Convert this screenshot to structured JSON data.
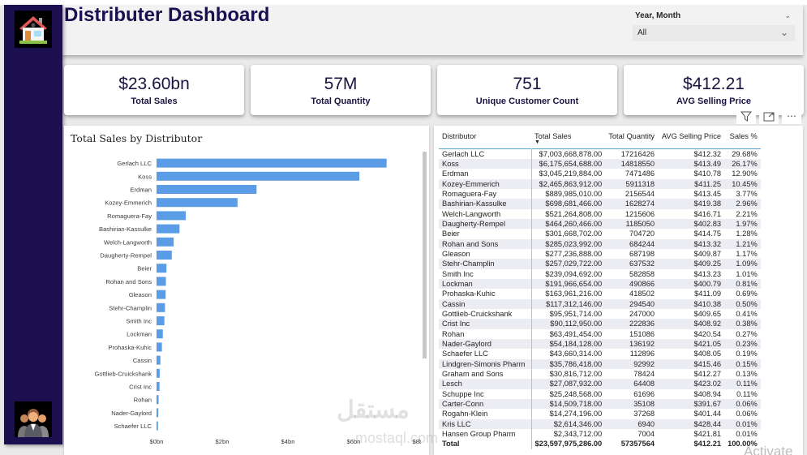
{
  "header": {
    "title": "Distributer Dashboard"
  },
  "sidebar": {
    "top_icon": "home-icon",
    "bottom_icon": "people-icon"
  },
  "slicer": {
    "label": "Year, Month",
    "value": "All"
  },
  "kpis": [
    {
      "value": "$23.60bn",
      "label": "Total Sales"
    },
    {
      "value": "57M",
      "label": "Total Quantity"
    },
    {
      "value": "751",
      "label": "Unique Customer Count"
    },
    {
      "value": "$412.21",
      "label": "AVG Selling Price"
    }
  ],
  "colors": {
    "brand": "#1b0f4f",
    "bar": "#5b9ce6"
  },
  "chart_data": {
    "type": "bar",
    "orientation": "horizontal",
    "title": "Total Sales by Distributor",
    "xlabel": "",
    "ylabel": "",
    "xlim": [
      0,
      8
    ],
    "x_unit": "bn",
    "x_ticks": [
      "$0bn",
      "$2bn",
      "$4bn",
      "$6bn",
      "$8bn"
    ],
    "grid": false,
    "categories": [
      "Gerlach LLC",
      "Koss",
      "Erdman",
      "Kozey-Emmerich",
      "Romaguera-Fay",
      "Bashirian-Kassulke",
      "Welch-Langworth",
      "Daugherty-Rempel",
      "Beier",
      "Rohan and Sons",
      "Gleason",
      "Stehr-Champlin",
      "Smith Inc",
      "Lockman",
      "Prohaska-Kuhic",
      "Cassin",
      "Gottlieb-Cruickshank",
      "Crist Inc",
      "Rohan",
      "Nader-Gaylord",
      "Schaefer LLC"
    ],
    "values": [
      7.004,
      6.176,
      3.045,
      2.466,
      0.89,
      0.699,
      0.521,
      0.464,
      0.302,
      0.285,
      0.277,
      0.257,
      0.239,
      0.192,
      0.164,
      0.117,
      0.096,
      0.09,
      0.063,
      0.054,
      0.044
    ]
  },
  "table": {
    "columns": [
      "Distributor",
      "Total Sales",
      "Total Quantity",
      "AVG Selling Price",
      "Sales %"
    ],
    "sorted_column": "Total Sales",
    "rows": [
      [
        "Gerlach LLC",
        "$7,003,668,878.00",
        "17216426",
        "$412.32",
        "29.68%"
      ],
      [
        "Koss",
        "$6,175,654,688.00",
        "14818550",
        "$413.49",
        "26.17%"
      ],
      [
        "Erdman",
        "$3,045,219,884.00",
        "7471486",
        "$410.78",
        "12.90%"
      ],
      [
        "Kozey-Emmerich",
        "$2,465,863,912.00",
        "5911318",
        "$411.25",
        "10.45%"
      ],
      [
        "Romaguera-Fay",
        "$889,985,010.00",
        "2156544",
        "$413.45",
        "3.77%"
      ],
      [
        "Bashirian-Kassulke",
        "$698,681,466.00",
        "1628274",
        "$419.38",
        "2.96%"
      ],
      [
        "Welch-Langworth",
        "$521,264,808.00",
        "1215606",
        "$416.71",
        "2.21%"
      ],
      [
        "Daugherty-Rempel",
        "$464,260,466.00",
        "1185050",
        "$402.83",
        "1.97%"
      ],
      [
        "Beier",
        "$301,668,702.00",
        "704720",
        "$414.75",
        "1.28%"
      ],
      [
        "Rohan and Sons",
        "$285,023,992.00",
        "684244",
        "$413.32",
        "1.21%"
      ],
      [
        "Gleason",
        "$277,236,888.00",
        "687198",
        "$409.87",
        "1.17%"
      ],
      [
        "Stehr-Champlin",
        "$257,029,722.00",
        "637532",
        "$409.25",
        "1.09%"
      ],
      [
        "Smith Inc",
        "$239,094,692.00",
        "582858",
        "$413.23",
        "1.01%"
      ],
      [
        "Lockman",
        "$191,966,654.00",
        "490866",
        "$400.79",
        "0.81%"
      ],
      [
        "Prohaska-Kuhic",
        "$163,961,216.00",
        "418502",
        "$411.09",
        "0.69%"
      ],
      [
        "Cassin",
        "$117,312,146.00",
        "294540",
        "$410.38",
        "0.50%"
      ],
      [
        "Gottlieb-Cruickshank",
        "$95,951,714.00",
        "247000",
        "$409.65",
        "0.41%"
      ],
      [
        "Crist Inc",
        "$90,112,950.00",
        "222836",
        "$408.92",
        "0.38%"
      ],
      [
        "Rohan",
        "$63,491,454.00",
        "151086",
        "$420.54",
        "0.27%"
      ],
      [
        "Nader-Gaylord",
        "$54,184,128.00",
        "136192",
        "$421.05",
        "0.23%"
      ],
      [
        "Schaefer LLC",
        "$43,660,314.00",
        "112896",
        "$408.05",
        "0.19%"
      ],
      [
        "Lindgren-Simonis Pharm",
        "$35,786,418.00",
        "92992",
        "$415.46",
        "0.15%"
      ],
      [
        "Graham and Sons",
        "$30,816,712.00",
        "78424",
        "$412.27",
        "0.13%"
      ],
      [
        "Lesch",
        "$27,087,932.00",
        "64408",
        "$423.02",
        "0.11%"
      ],
      [
        "Schuppe Inc",
        "$25,248,568.00",
        "61696",
        "$408.94",
        "0.11%"
      ],
      [
        "Carter-Conn",
        "$14,509,718.00",
        "35108",
        "$391.67",
        "0.06%"
      ],
      [
        "Rogahn-Klein",
        "$14,274,196.00",
        "37268",
        "$401.44",
        "0.06%"
      ],
      [
        "Kris LLC",
        "$2,614,346.00",
        "6940",
        "$428.44",
        "0.01%"
      ],
      [
        "Hansen Group Pharm",
        "$2,343,712.00",
        "7004",
        "$421.81",
        "0.01%"
      ]
    ],
    "total": [
      "Total",
      "$23,597,975,286.00",
      "57357564",
      "$412.21",
      "100.00%"
    ]
  },
  "watermarks": {
    "activate": "Activate",
    "mostaql_ar": "مستقل",
    "mostaql_en": "mostaql.com"
  }
}
